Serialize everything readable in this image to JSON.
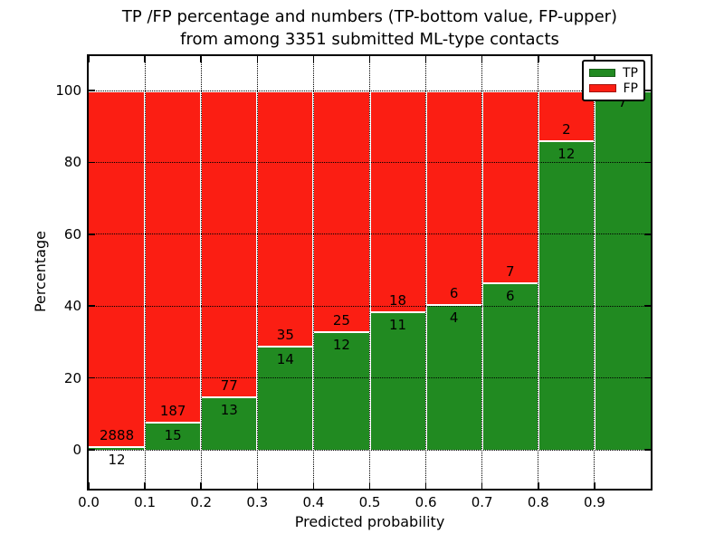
{
  "title": {
    "line1": "TP /FP percentage and numbers (TP-bottom value, FP-upper)",
    "line2": "from among 3351 submitted ML-type contacts"
  },
  "chart_data": {
    "type": "bar",
    "variant": "stacked-percentage",
    "title": "TP /FP percentage and numbers (TP-bottom value, FP-upper)\nfrom among 3351 submitted ML-type contacts",
    "total_contacts": 3351,
    "xlabel": "Predicted probability",
    "ylabel": "Percentage",
    "x_tick_labels": [
      "0.0",
      "0.1",
      "0.2",
      "0.3",
      "0.4",
      "0.5",
      "0.6",
      "0.7",
      "0.8",
      "0.9"
    ],
    "y_tick_values": [
      0,
      20,
      40,
      60,
      80,
      100
    ],
    "y_tick_labels": [
      "0",
      "20",
      "40",
      "60",
      "80",
      "100"
    ],
    "xlim": [
      0.0,
      1.0
    ],
    "ylim": [
      -10.8,
      109.6
    ],
    "grid": true,
    "grid_style": "dotted",
    "legend_position": "upper right",
    "legend": [
      {
        "label": "TP",
        "color": "#218a21"
      },
      {
        "label": "FP",
        "color": "#fb1e13"
      }
    ],
    "bins": [
      {
        "range": [
          0.0,
          0.1
        ],
        "tp": 12,
        "fp": 2888,
        "tp_pct": 0.41
      },
      {
        "range": [
          0.1,
          0.2
        ],
        "tp": 15,
        "fp": 187,
        "tp_pct": 7.43
      },
      {
        "range": [
          0.2,
          0.3
        ],
        "tp": 13,
        "fp": 77,
        "tp_pct": 14.44
      },
      {
        "range": [
          0.3,
          0.4
        ],
        "tp": 14,
        "fp": 35,
        "tp_pct": 28.57
      },
      {
        "range": [
          0.4,
          0.5
        ],
        "tp": 12,
        "fp": 25,
        "tp_pct": 32.43
      },
      {
        "range": [
          0.5,
          0.6
        ],
        "tp": 11,
        "fp": 18,
        "tp_pct": 37.93
      },
      {
        "range": [
          0.6,
          0.7
        ],
        "tp": 4,
        "fp": 6,
        "tp_pct": 40.0
      },
      {
        "range": [
          0.7,
          0.8
        ],
        "tp": 6,
        "fp": 7,
        "tp_pct": 46.15
      },
      {
        "range": [
          0.8,
          0.9
        ],
        "tp": 12,
        "fp": 2,
        "tp_pct": 85.71
      },
      {
        "range": [
          0.9,
          1.0
        ],
        "tp": 7,
        "fp": 0,
        "tp_pct": 100.0
      }
    ]
  }
}
